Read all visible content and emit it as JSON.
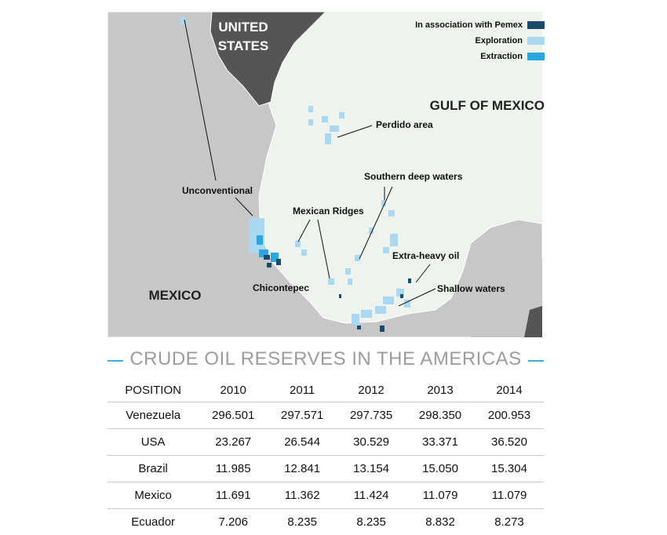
{
  "map": {
    "us_label": [
      "UNITED",
      "STATES"
    ],
    "water_label": "GULF OF MEXICO",
    "country_label": "MEXICO",
    "legend": [
      "In association with Pemex",
      "Exploration",
      "Extraction"
    ],
    "areas": [
      "Perdido area",
      "Southern deep waters",
      "Unconventional",
      "Mexican Ridges",
      "Extra-heavy oil",
      "Chicontepec",
      "Shallow waters"
    ]
  },
  "table": {
    "title": "CRUDE OIL RESERVES IN THE AMERICAS",
    "header": [
      "POSITION",
      "2010",
      "2011",
      "2012",
      "2013",
      "2014"
    ],
    "rows": [
      [
        "Venezuela",
        "296.501",
        "297.571",
        "297.735",
        "298.350",
        "200.953"
      ],
      [
        "USA",
        "23.267",
        "26.544",
        "30.529",
        "33.371",
        "36.520"
      ],
      [
        "Brazil",
        "11.985",
        "12.841",
        "13.154",
        "15.050",
        "15.304"
      ],
      [
        "Mexico",
        "11.691",
        "11.362",
        "11.424",
        "11.079",
        "11.079"
      ],
      [
        "Ecuador",
        "7.206",
        "8.235",
        "8.235",
        "8.832",
        "8.273"
      ]
    ]
  }
}
